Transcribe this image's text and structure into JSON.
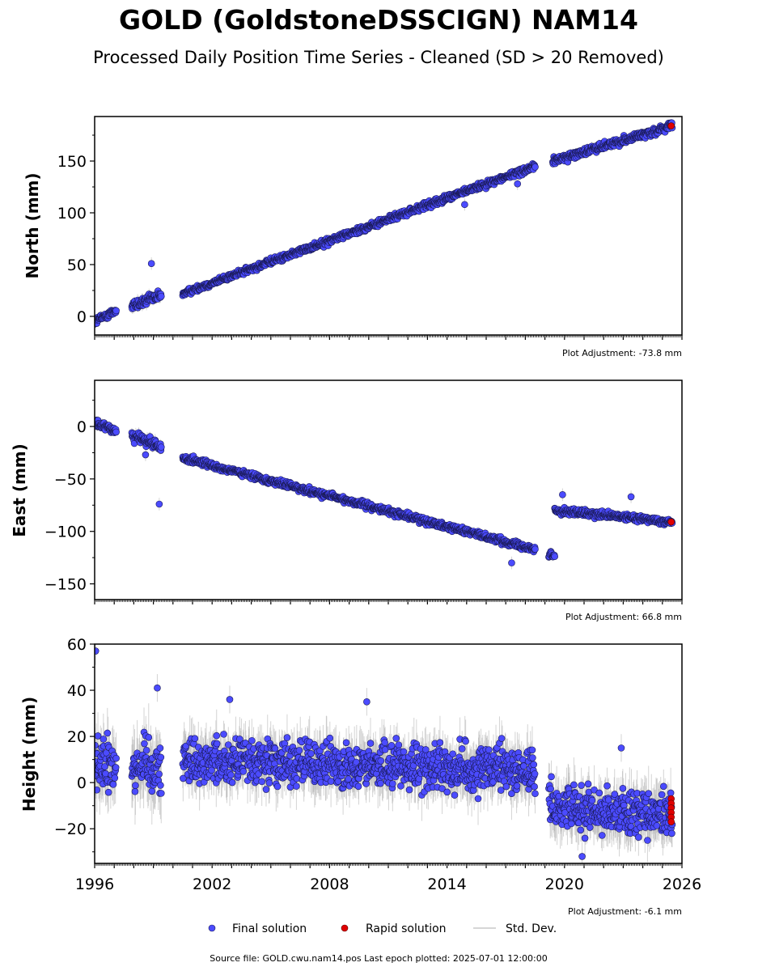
{
  "chart_data": {
    "type": "scatter",
    "title": "GOLD (GoldstoneDSSCIGN) NAM14",
    "subtitle": "Processed Daily Position Time Series - Cleaned (SD > 20 Removed)",
    "x_ticks": [
      "1996",
      "2002",
      "2008",
      "2014",
      "2020",
      "2026"
    ],
    "xlim": [
      1996,
      2026
    ],
    "panels": [
      {
        "id": "north",
        "ylabel": "North (mm)",
        "ylim": [
          -18,
          193
        ],
        "y_ticks": [
          0,
          50,
          100,
          150
        ],
        "y_tick_labels": [
          "0",
          "50",
          "100",
          "150"
        ],
        "adjustment": "Plot Adjustment: -73.8 mm",
        "segments": [
          {
            "x0": 1996.0,
            "x1": 1997.1,
            "y0": -5,
            "y1": 6,
            "noise": 3
          },
          {
            "x0": 1997.9,
            "x1": 1999.4,
            "y0": 10,
            "y1": 20,
            "noise": 4
          },
          {
            "x0": 2000.5,
            "x1": 2018.5,
            "y0": 22,
            "y1": 145,
            "noise": 2.5
          },
          {
            "x0": 2019.4,
            "x1": 2025.5,
            "y0": 150,
            "y1": 184,
            "noise": 3
          }
        ],
        "outliers": [
          {
            "x": 1998.9,
            "y": 51
          },
          {
            "x": 2014.9,
            "y": 108
          },
          {
            "x": 2017.6,
            "y": 128
          }
        ],
        "rapid": [
          {
            "x": 2025.45,
            "y": 184
          }
        ]
      },
      {
        "id": "east",
        "ylabel": "East (mm)",
        "ylim": [
          -165,
          44
        ],
        "y_ticks": [
          0,
          -50,
          -100,
          -150
        ],
        "y_tick_labels": [
          "0",
          "−50",
          "−100",
          "−150"
        ],
        "adjustment": "Plot Adjustment: 66.8 mm",
        "segments": [
          {
            "x0": 1996.0,
            "x1": 1997.1,
            "y0": 3,
            "y1": -4,
            "noise": 3
          },
          {
            "x0": 1997.9,
            "x1": 1999.4,
            "y0": -8,
            "y1": -20,
            "noise": 4
          },
          {
            "x0": 2000.5,
            "x1": 2018.5,
            "y0": -30,
            "y1": -117,
            "noise": 2.5
          },
          {
            "x0": 2019.2,
            "x1": 2019.5,
            "y0": -122,
            "y1": -124,
            "noise": 3
          },
          {
            "x0": 2019.5,
            "x1": 2025.5,
            "y0": -80,
            "y1": -91,
            "noise": 2.5
          }
        ],
        "outliers": [
          {
            "x": 1999.3,
            "y": -74
          },
          {
            "x": 1998.6,
            "y": -27
          },
          {
            "x": 2017.3,
            "y": -130
          },
          {
            "x": 2019.9,
            "y": -65
          },
          {
            "x": 2023.4,
            "y": -67
          }
        ],
        "rapid": [
          {
            "x": 2025.45,
            "y": -91
          }
        ]
      },
      {
        "id": "height",
        "ylabel": "Height (mm)",
        "ylim": [
          -35,
          60
        ],
        "y_ticks": [
          60,
          40,
          20,
          0,
          -20
        ],
        "y_tick_labels": [
          "60",
          "40",
          "20",
          "0",
          "−20"
        ],
        "adjustment": "Plot Adjustment: -6.1 mm",
        "segments": [
          {
            "x0": 1996.0,
            "x1": 1997.1,
            "y0": 8,
            "y1": 8,
            "noise": 10
          },
          {
            "x0": 1997.9,
            "x1": 1999.4,
            "y0": 8,
            "y1": 8,
            "noise": 10
          },
          {
            "x0": 2000.5,
            "x1": 2018.5,
            "y0": 10,
            "y1": 5,
            "noise": 8
          },
          {
            "x0": 2019.2,
            "x1": 2025.5,
            "y0": -10,
            "y1": -14,
            "noise": 8
          }
        ],
        "outliers": [
          {
            "x": 1996.05,
            "y": 57
          },
          {
            "x": 1999.2,
            "y": 41
          },
          {
            "x": 2002.9,
            "y": 36
          },
          {
            "x": 2009.9,
            "y": 35
          },
          {
            "x": 2020.9,
            "y": -32
          },
          {
            "x": 2022.9,
            "y": 15
          }
        ],
        "rapid": [
          {
            "x": 2025.45,
            "y": -7
          },
          {
            "x": 2025.45,
            "y": -9
          },
          {
            "x": 2025.45,
            "y": -11
          },
          {
            "x": 2025.45,
            "y": -13
          },
          {
            "x": 2025.45,
            "y": -15
          },
          {
            "x": 2025.45,
            "y": -17
          }
        ]
      }
    ],
    "legend": {
      "placement": "bottom-center",
      "final_label": "Final solution",
      "rapid_label": "Rapid solution",
      "std_label": "Std. Dev."
    },
    "colors": {
      "final": "#4b4bff",
      "rapid": "#e00000",
      "std": "#b0b0b0"
    },
    "footer": "Source file: GOLD.cwu.nam14.pos  Last epoch plotted: 2025-07-01 12:00:00"
  }
}
